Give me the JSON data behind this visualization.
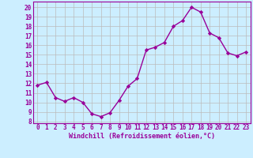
{
  "x": [
    0,
    1,
    2,
    3,
    4,
    5,
    6,
    7,
    8,
    9,
    10,
    11,
    12,
    13,
    14,
    15,
    16,
    17,
    18,
    19,
    20,
    21,
    22,
    23
  ],
  "y": [
    11.8,
    12.1,
    10.5,
    10.1,
    10.5,
    10.0,
    8.8,
    8.5,
    8.9,
    10.2,
    11.7,
    12.5,
    15.5,
    15.8,
    16.3,
    18.0,
    18.6,
    20.0,
    19.5,
    17.3,
    16.8,
    15.2,
    14.9,
    15.3
  ],
  "line_color": "#990099",
  "marker": "D",
  "marker_size": 2.2,
  "bg_color": "#cceeff",
  "grid_color": "#bbbbbb",
  "xlabel": "Windchill (Refroidissement éolien,°C)",
  "ylabel_ticks": [
    8,
    9,
    10,
    11,
    12,
    13,
    14,
    15,
    16,
    17,
    18,
    19,
    20
  ],
  "ylim": [
    7.8,
    20.6
  ],
  "xlim": [
    -0.5,
    23.5
  ],
  "tick_fontsize": 5.5,
  "xlabel_fontsize": 6.0
}
